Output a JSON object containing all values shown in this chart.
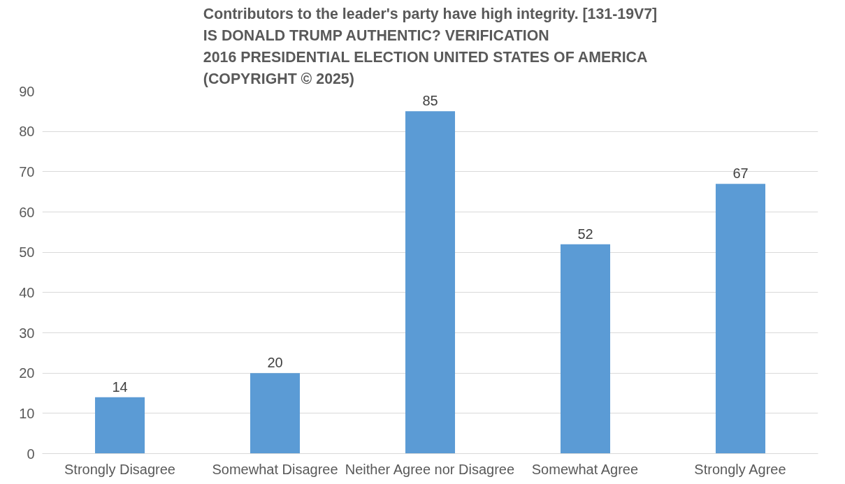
{
  "chart_data": {
    "type": "bar",
    "title": "Contributors to the leader's party have high integrity. [131-19V7]\nIS DONALD TRUMP AUTHENTIC? VERIFICATION\n2016 PRESIDENTIAL ELECTION UNITED STATES OF AMERICA\n(COPYRIGHT © 2025)",
    "categories": [
      "Strongly Disagree",
      "Somewhat Disagree",
      "Neither Agree nor Disagree",
      "Somewhat Agree",
      "Strongly Agree"
    ],
    "values": [
      14,
      20,
      85,
      52,
      67
    ],
    "color": "#5b9bd5",
    "ylim": [
      0,
      90
    ],
    "yticks": [
      0,
      10,
      20,
      30,
      40,
      50,
      60,
      70,
      80,
      90
    ],
    "grid": "y",
    "data_labels": true
  }
}
